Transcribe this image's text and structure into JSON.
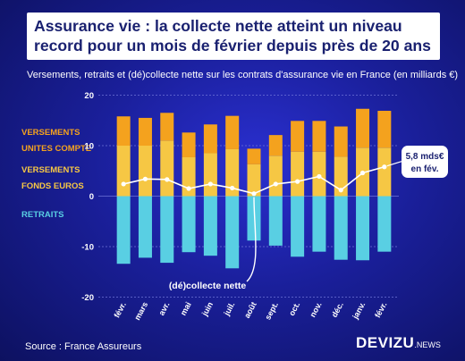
{
  "title_line1": "Assurance vie : la collecte nette atteint un niveau",
  "title_line2": "record pour un mois de février depuis près de 20 ans",
  "subtitle": "Versements, retraits et (dé)collecte nette sur les contrats d'assurance vie en France (en milliards €)",
  "legend": {
    "uc_line1": "VERSEMENTS",
    "uc_line2": "UNITES COMPTE",
    "fe_line1": "VERSEMENTS",
    "fe_line2": "FONDS EUROS",
    "retraits": "RETRAITS"
  },
  "colors": {
    "unites_compte": "#f4a21e",
    "fonds_euros": "#f6c744",
    "retraits": "#59cfe3",
    "line": "#ffffff",
    "legend_orange": "#f4a21e",
    "legend_yellow": "#f6c744",
    "legend_cyan": "#59cfe3"
  },
  "source": "Source : France Assureurs",
  "brand": {
    "name": "DEVIZU",
    "suffix": ".NEWS"
  },
  "chart_data": {
    "type": "bar",
    "categories": [
      "févr.",
      "mars",
      "avr.",
      "mai",
      "juin",
      "juil.",
      "août",
      "sept.",
      "oct.",
      "nov.",
      "déc.",
      "janv.",
      "févr."
    ],
    "ylim": [
      -20,
      20
    ],
    "yticks": [
      -20,
      -10,
      0,
      10,
      20
    ],
    "series": [
      {
        "name": "VERSEMENTS FONDS EUROS",
        "stack": "pos",
        "values": [
          10.0,
          10.0,
          11.0,
          7.7,
          8.5,
          9.3,
          6.3,
          8.0,
          8.8,
          8.8,
          7.8,
          9.6,
          9.6
        ]
      },
      {
        "name": "VERSEMENTS UNITES COMPTE",
        "stack": "pos",
        "values": [
          5.8,
          5.5,
          5.5,
          4.9,
          5.7,
          6.6,
          3.1,
          4.1,
          6.1,
          6.1,
          6.0,
          7.7,
          7.3
        ]
      },
      {
        "name": "RETRAITS",
        "stack": "neg",
        "values": [
          -13.4,
          -12.2,
          -13.2,
          -11.1,
          -11.8,
          -14.3,
          -8.8,
          -9.8,
          -12.0,
          -11.0,
          -12.6,
          -12.7,
          -11.0
        ]
      },
      {
        "name": "(dé)collecte nette",
        "type": "line",
        "values": [
          2.4,
          3.4,
          3.3,
          1.5,
          2.4,
          1.6,
          0.5,
          2.4,
          2.9,
          3.9,
          1.2,
          4.6,
          5.8
        ]
      }
    ],
    "annotations": [
      {
        "text": "(dé)collecte nette",
        "target_index": 6
      },
      {
        "text_line1": "5,8 mds€",
        "text_line2": "en fév.",
        "target_index": 12
      }
    ]
  }
}
